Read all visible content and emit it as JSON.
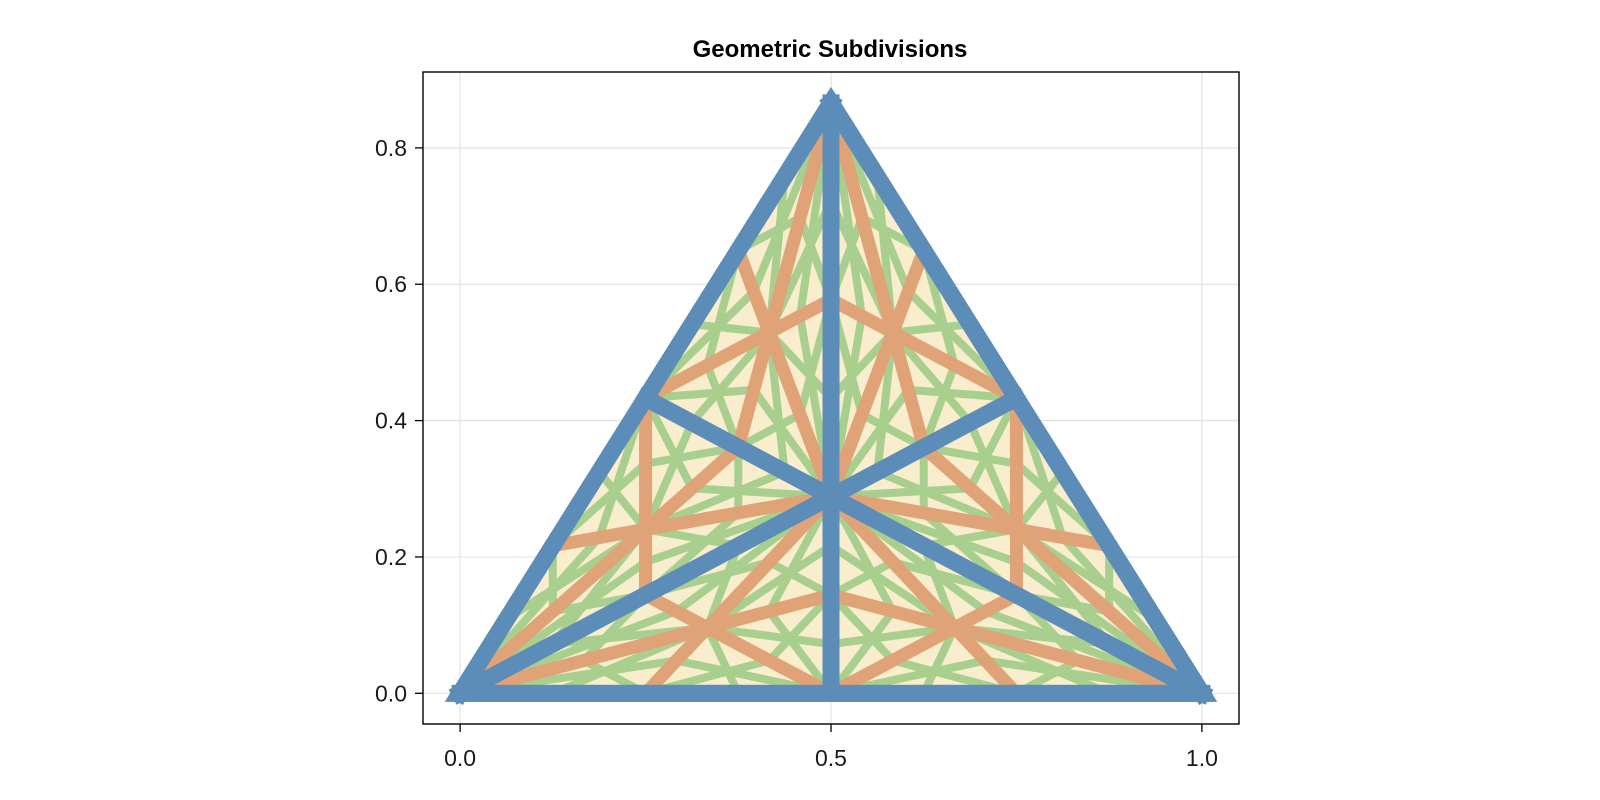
{
  "chart_data": {
    "type": "line",
    "title": "Geometric Subdivisions",
    "xlabel": "",
    "ylabel": "",
    "xlim": [
      -0.05,
      1.05
    ],
    "ylim": [
      -0.045,
      0.9113
    ],
    "x_ticks": [
      "0.0",
      "0.5",
      "1.0"
    ],
    "x_tick_values": [
      0.0,
      0.5,
      1.0
    ],
    "y_ticks": [
      "0.0",
      "0.2",
      "0.4",
      "0.6",
      "0.8"
    ],
    "y_tick_values": [
      0.0,
      0.2,
      0.4,
      0.6,
      0.8
    ],
    "grid": true,
    "triangle_vertices": [
      [
        0.0,
        0.0
      ],
      [
        1.0,
        0.0
      ],
      [
        0.5,
        0.866
      ]
    ],
    "fill_color": "#f8edcc",
    "series": [
      {
        "level": 3,
        "color": "#a8cf8e",
        "divisions": 8
      },
      {
        "level": 2,
        "color": "#e0a277",
        "divisions": 4
      },
      {
        "level": 1,
        "color": "#5b8db8",
        "divisions": 2
      }
    ]
  }
}
